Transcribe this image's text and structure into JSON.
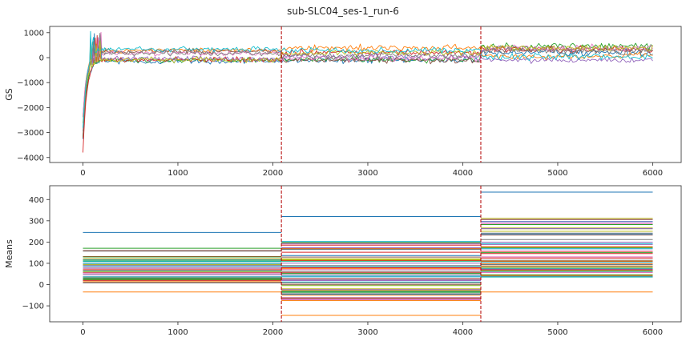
{
  "title": "sub-SLC04_ses-1_run-6",
  "colors": [
    "#1f77b4",
    "#ff7f0e",
    "#2ca02c",
    "#d62728",
    "#9467bd",
    "#8c564b",
    "#e377c2",
    "#7f7f7f",
    "#bcbd22",
    "#17becf"
  ],
  "chart_data": [
    {
      "type": "line",
      "panel": "top",
      "ylabel": "GS",
      "xlim": [
        -350,
        6300
      ],
      "ylim": [
        -4200,
        1250
      ],
      "xticks": [
        0,
        1000,
        2000,
        3000,
        4000,
        5000,
        6000
      ],
      "yticks": [
        -4000,
        -3000,
        -2000,
        -1000,
        0,
        1000
      ],
      "x_range": [
        0,
        6000
      ],
      "n_series": 10,
      "transient": {
        "start_min": -3900,
        "peak_max": 1050,
        "settle_x": 300
      },
      "segments": [
        {
          "x": [
            0,
            2090
          ],
          "band": [
            -450,
            450
          ]
        },
        {
          "x": [
            2090,
            4190
          ],
          "band": [
            -350,
            650
          ]
        },
        {
          "x": [
            4190,
            6000
          ],
          "band": [
            -350,
            750
          ]
        }
      ],
      "vlines": [
        2090,
        4190
      ],
      "grid": false
    },
    {
      "type": "line",
      "panel": "bottom",
      "ylabel": "Means",
      "xlim": [
        -350,
        6300
      ],
      "ylim": [
        -175,
        465
      ],
      "xticks": [
        0,
        1000,
        2000,
        3000,
        4000,
        5000,
        6000
      ],
      "yticks": [
        -100,
        0,
        100,
        200,
        300,
        400
      ],
      "vlines": [
        2090,
        4190
      ],
      "segments": [
        {
          "x": [
            0,
            2090
          ],
          "min": -35,
          "max": 245,
          "n": 60
        },
        {
          "x": [
            2090,
            4190
          ],
          "min": -145,
          "max": 320,
          "n": 70
        },
        {
          "x": [
            4190,
            6000
          ],
          "min": -35,
          "max": 435,
          "n": 70
        }
      ],
      "grid": false
    }
  ]
}
